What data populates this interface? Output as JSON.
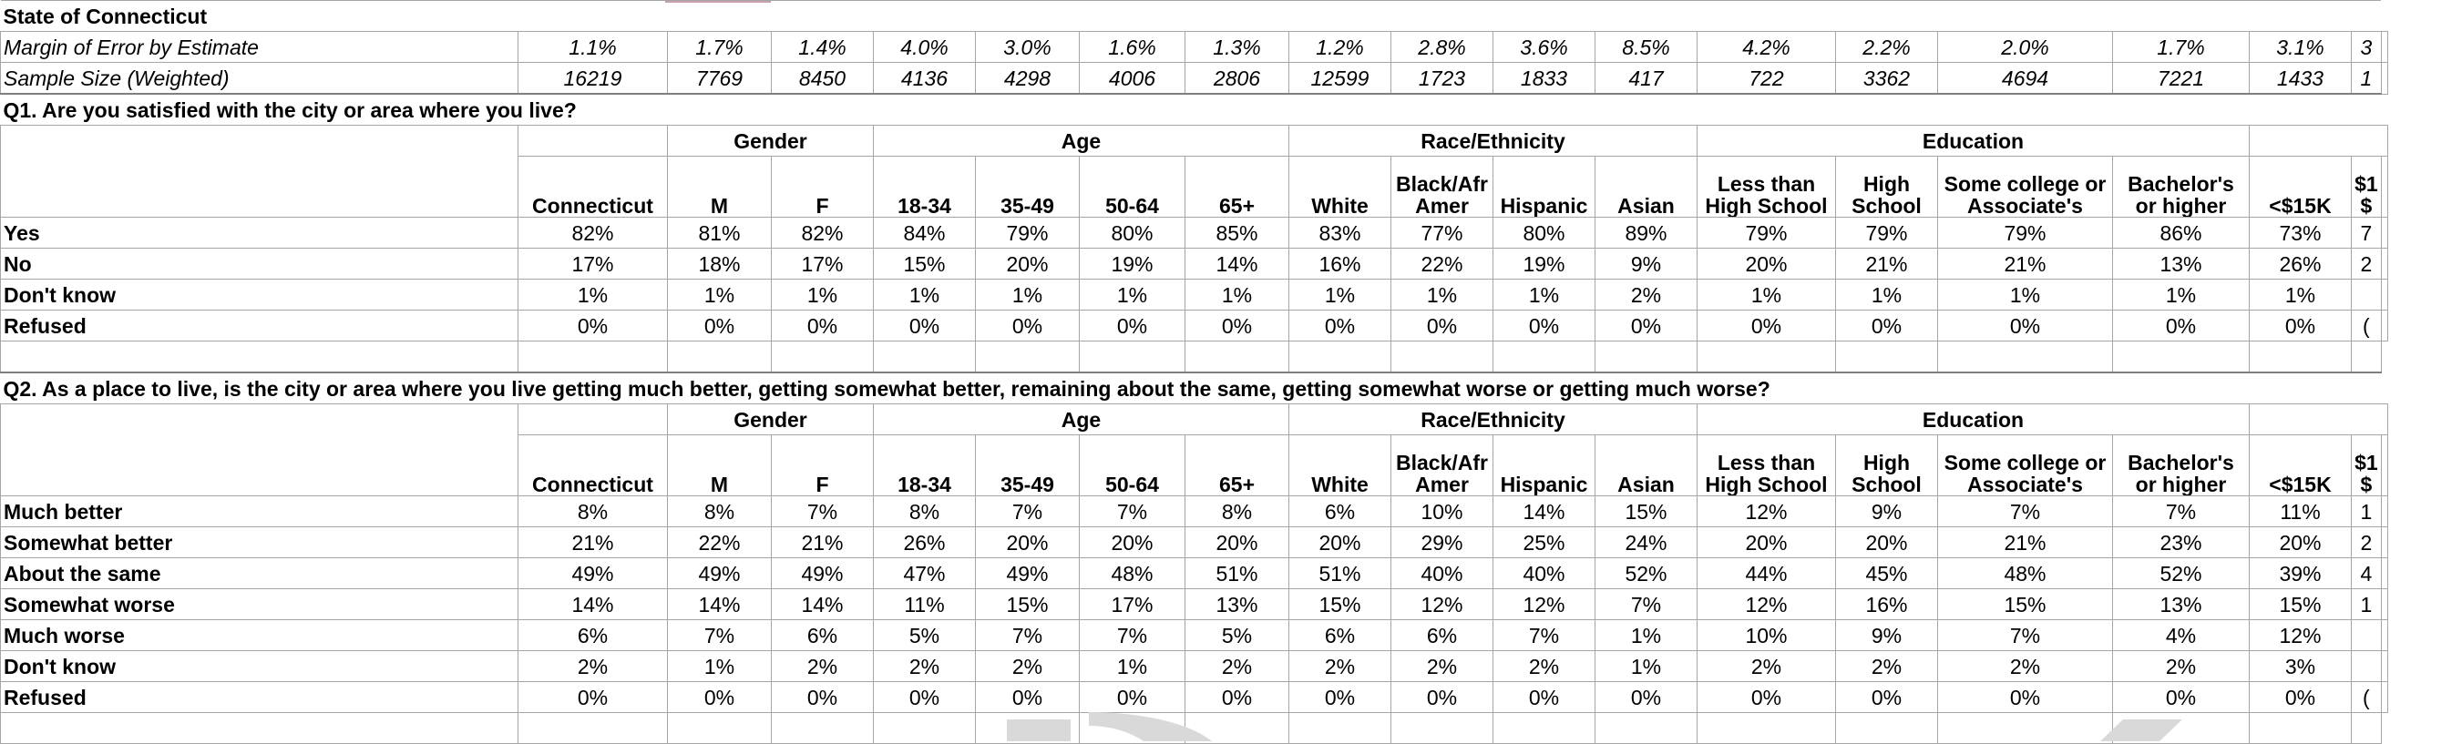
{
  "title": "State of Connecticut",
  "stats": [
    {
      "label": "Margin of Error by Estimate",
      "values": [
        "1.1%",
        "1.7%",
        "1.4%",
        "4.0%",
        "3.0%",
        "1.6%",
        "1.3%",
        "1.2%",
        "2.8%",
        "3.6%",
        "8.5%",
        "4.2%",
        "2.2%",
        "2.0%",
        "1.7%",
        "3.1%",
        "3"
      ]
    },
    {
      "label": "Sample Size (Weighted)",
      "values": [
        "16219",
        "7769",
        "8450",
        "4136",
        "4298",
        "4006",
        "2806",
        "12599",
        "1723",
        "1833",
        "417",
        "722",
        "3362",
        "4694",
        "7221",
        "1433",
        "1"
      ]
    }
  ],
  "header": {
    "groups": [
      "Gender",
      "Age",
      "Race/Ethnicity",
      "Education"
    ],
    "cols": [
      "Connecticut",
      "M",
      "F",
      "18-34",
      "35-49",
      "50-64",
      "65+",
      "White",
      "Black/Afr Amer",
      "Hispanic",
      "Asian",
      "Less than High School",
      "High School",
      "Some college or Associate's",
      "Bachelor's or higher",
      "<$15K",
      "$1 $"
    ]
  },
  "questions": [
    {
      "text": "Q1. Are you satisfied with the city or area where you live?",
      "rows": [
        {
          "label": "Yes",
          "values": [
            "82%",
            "81%",
            "82%",
            "84%",
            "79%",
            "80%",
            "85%",
            "83%",
            "77%",
            "80%",
            "89%",
            "79%",
            "79%",
            "79%",
            "86%",
            "73%",
            "7"
          ]
        },
        {
          "label": "No",
          "values": [
            "17%",
            "18%",
            "17%",
            "15%",
            "20%",
            "19%",
            "14%",
            "16%",
            "22%",
            "19%",
            "9%",
            "20%",
            "21%",
            "21%",
            "13%",
            "26%",
            "2"
          ]
        },
        {
          "label": "Don't know",
          "values": [
            "1%",
            "1%",
            "1%",
            "1%",
            "1%",
            "1%",
            "1%",
            "1%",
            "1%",
            "1%",
            "2%",
            "1%",
            "1%",
            "1%",
            "1%",
            "1%",
            ""
          ]
        },
        {
          "label": "Refused",
          "values": [
            "0%",
            "0%",
            "0%",
            "0%",
            "0%",
            "0%",
            "0%",
            "0%",
            "0%",
            "0%",
            "0%",
            "0%",
            "0%",
            "0%",
            "0%",
            "0%",
            "("
          ]
        }
      ]
    },
    {
      "text": "Q2. As a place to live, is the city or area where you live getting much better, getting somewhat better, remaining about the same, getting somewhat worse or getting much worse?",
      "rows": [
        {
          "label": "Much better",
          "values": [
            "8%",
            "8%",
            "7%",
            "8%",
            "7%",
            "7%",
            "8%",
            "6%",
            "10%",
            "14%",
            "15%",
            "12%",
            "9%",
            "7%",
            "7%",
            "11%",
            "1"
          ]
        },
        {
          "label": "Somewhat better",
          "values": [
            "21%",
            "22%",
            "21%",
            "26%",
            "20%",
            "20%",
            "20%",
            "20%",
            "29%",
            "25%",
            "24%",
            "20%",
            "20%",
            "21%",
            "23%",
            "20%",
            "2"
          ]
        },
        {
          "label": "About the same",
          "values": [
            "49%",
            "49%",
            "49%",
            "47%",
            "49%",
            "48%",
            "51%",
            "51%",
            "40%",
            "40%",
            "52%",
            "44%",
            "45%",
            "48%",
            "52%",
            "39%",
            "4"
          ]
        },
        {
          "label": "Somewhat worse",
          "values": [
            "14%",
            "14%",
            "14%",
            "11%",
            "15%",
            "17%",
            "13%",
            "15%",
            "12%",
            "12%",
            "7%",
            "12%",
            "16%",
            "15%",
            "13%",
            "15%",
            "1"
          ]
        },
        {
          "label": "Much worse",
          "values": [
            "6%",
            "7%",
            "6%",
            "5%",
            "7%",
            "7%",
            "5%",
            "6%",
            "6%",
            "7%",
            "1%",
            "10%",
            "9%",
            "7%",
            "4%",
            "12%",
            ""
          ]
        },
        {
          "label": "Don't know",
          "values": [
            "2%",
            "1%",
            "2%",
            "2%",
            "2%",
            "1%",
            "2%",
            "2%",
            "2%",
            "2%",
            "1%",
            "2%",
            "2%",
            "2%",
            "2%",
            "3%",
            ""
          ]
        },
        {
          "label": "Refused",
          "values": [
            "0%",
            "0%",
            "0%",
            "0%",
            "0%",
            "0%",
            "0%",
            "0%",
            "0%",
            "0%",
            "0%",
            "0%",
            "0%",
            "0%",
            "0%",
            "0%",
            "("
          ]
        }
      ]
    }
  ]
}
